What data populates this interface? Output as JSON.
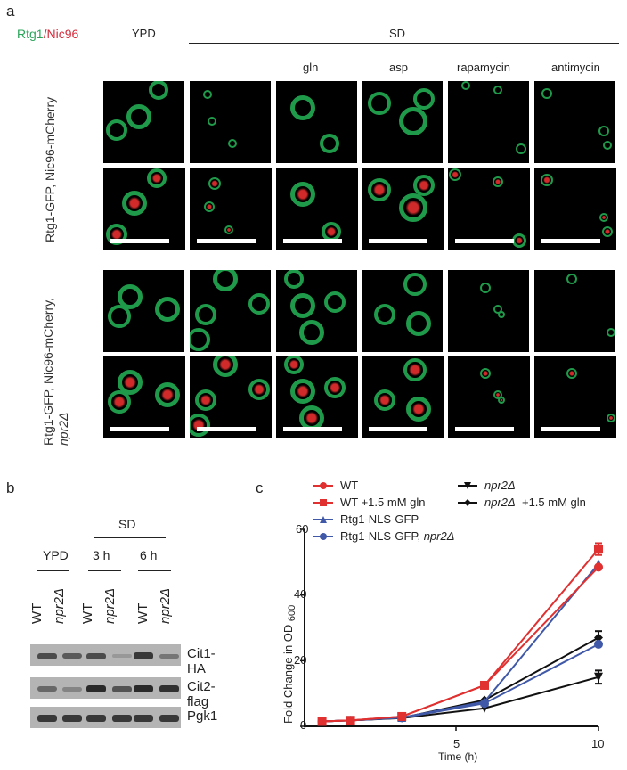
{
  "panel_a": {
    "letter": "a",
    "legend": {
      "green_text": "Rtg1",
      "slash": "/",
      "red_text": "Nic96",
      "green_color": "#2aa55a",
      "red_color": "#d42a3a"
    },
    "ypd_label": "YPD",
    "sd_label": "SD",
    "conditions": [
      "",
      "",
      "gln",
      "asp",
      "rapamycin",
      "antimycin"
    ],
    "row_groups": [
      {
        "label": "Rtg1-GFP, Nic96-mCherry"
      },
      {
        "label_line1": "Rtg1-GFP, Nic96-mCherry,",
        "label_line2": "npr2Δ"
      }
    ]
  },
  "panel_b": {
    "letter": "b",
    "sd_label": "SD",
    "groups": [
      "YPD",
      "3 h",
      "6 h"
    ],
    "lanes": [
      "WT",
      "npr2Δ",
      "WT",
      "npr2Δ",
      "WT",
      "npr2Δ"
    ],
    "blots": [
      {
        "label": "Cit1-HA",
        "band_intensity": [
          0.75,
          0.65,
          0.75,
          0.2,
          0.9,
          0.45
        ]
      },
      {
        "label": "Cit2-flag",
        "band_intensity": [
          0.55,
          0.35,
          1.0,
          0.7,
          1.0,
          0.95
        ]
      },
      {
        "label": "Pgk1",
        "band_intensity": [
          0.9,
          0.9,
          0.9,
          0.9,
          0.9,
          0.9
        ]
      }
    ]
  },
  "panel_c": {
    "letter": "c",
    "legend": [
      {
        "label": "WT",
        "color": "#e03030",
        "marker": "circle"
      },
      {
        "label": "WT +1.5 mM gln",
        "color": "#e03030",
        "marker": "square"
      },
      {
        "label": "Rtg1-NLS-GFP",
        "color": "#4058a8",
        "marker": "triangle"
      },
      {
        "label_main": "Rtg1-NLS-GFP, ",
        "label_italic": "npr2Δ",
        "color": "#4058a8",
        "marker": "circle"
      },
      {
        "label_italic": "npr2Δ",
        "color": "#111111",
        "marker": "triangle-down"
      },
      {
        "label_italic": "npr2Δ",
        "label_suffix": "  +1.5 mM gln",
        "color": "#111111",
        "marker": "diamond"
      }
    ],
    "y_ticks": [
      "0",
      "20",
      "40",
      "60"
    ],
    "x_ticks": [
      "5",
      "10"
    ],
    "ylabel": "Fold Change in OD",
    "ylabel_sub": "600",
    "xlabel": "Time (h)"
  },
  "chart_data": {
    "type": "line",
    "title": "",
    "xlabel": "Time (h)",
    "ylabel": "Fold Change in OD600",
    "xlim": [
      0,
      10
    ],
    "ylim": [
      0,
      60
    ],
    "x": [
      0.3,
      1.3,
      3.1,
      6,
      10
    ],
    "grid": false,
    "legend_position": "top",
    "series": [
      {
        "name": "WT",
        "values": [
          1.5,
          1.8,
          3.0,
          12.5,
          48.5
        ]
      },
      {
        "name": "WT +1.5 mM gln",
        "values": [
          1.5,
          1.8,
          3.0,
          12.5,
          54.0
        ]
      },
      {
        "name": "Rtg1-NLS-GFP",
        "values": [
          1.5,
          1.8,
          2.7,
          7.5,
          49.5
        ]
      },
      {
        "name": "Rtg1-NLS-GFP, npr2Δ",
        "values": [
          1.5,
          1.8,
          2.6,
          7.0,
          25.0
        ]
      },
      {
        "name": "npr2Δ",
        "values": [
          1.5,
          1.8,
          2.5,
          5.5,
          15.0
        ]
      },
      {
        "name": "npr2Δ +1.5 mM gln",
        "values": [
          1.5,
          1.8,
          2.6,
          8.0,
          27.0
        ]
      }
    ],
    "error_bars_at_last_point": {
      "WT +1.5 mM gln": 1.8,
      "npr2Δ": 2.0,
      "npr2Δ +1.5 mM gln": 2.0
    }
  }
}
